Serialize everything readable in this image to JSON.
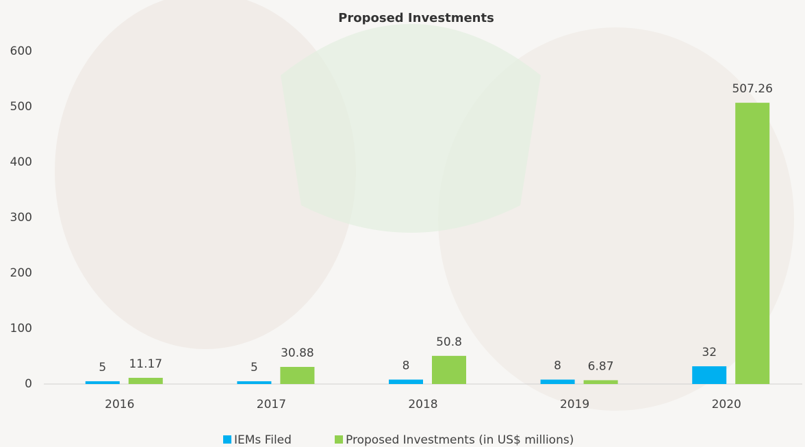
{
  "chart_data": {
    "type": "bar",
    "title": "Proposed Investments",
    "categories": [
      "2016",
      "2017",
      "2018",
      "2019",
      "2020"
    ],
    "series": [
      {
        "name": "IEMs Filed",
        "color": "#00b0f0",
        "values": [
          5,
          5,
          8,
          8,
          32
        ]
      },
      {
        "name": "Proposed Investments (in US$ millions)",
        "color": "#92d050",
        "values": [
          11.17,
          30.88,
          50.8,
          6.87,
          507.26
        ]
      }
    ],
    "ylim": [
      0,
      600
    ],
    "yticks": [
      0,
      100,
      200,
      300,
      400,
      500,
      600
    ],
    "grid": false,
    "legend": "bottom"
  }
}
